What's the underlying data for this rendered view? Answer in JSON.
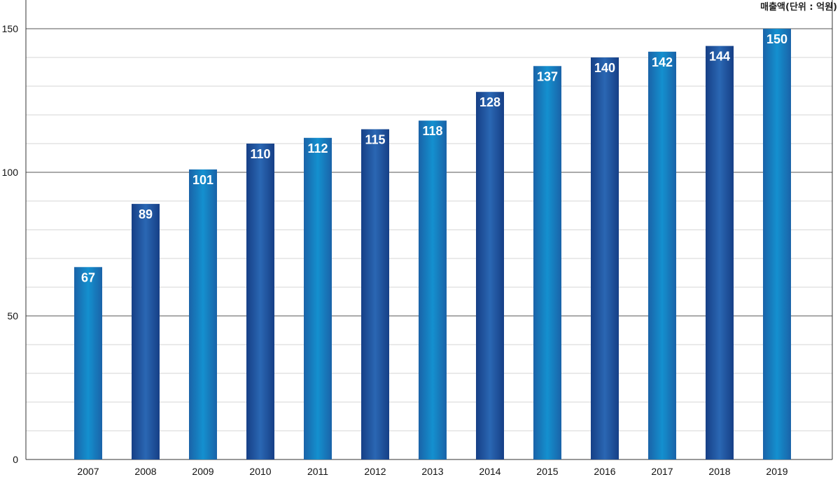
{
  "chart_data": {
    "type": "bar",
    "title": "",
    "unit_label": "매출액(단위 : 억원)",
    "xlabel": "",
    "ylabel": "",
    "categories": [
      "2007",
      "2008",
      "2009",
      "2010",
      "2011",
      "2012",
      "2013",
      "2014",
      "2015",
      "2016",
      "2017",
      "2018",
      "2019"
    ],
    "values": [
      67,
      89,
      101,
      110,
      112,
      115,
      118,
      128,
      137,
      140,
      142,
      144,
      150
    ],
    "ylim": [
      0,
      150
    ],
    "yticks": [
      "0",
      "50",
      "100",
      "150"
    ],
    "grid": true,
    "colors": {
      "bar_light": "#1186c4",
      "bar_dark": "#1c4f9a",
      "major_grid": "#555555",
      "minor_grid": "#d4d4d4",
      "value_text": "#ffffff"
    }
  }
}
